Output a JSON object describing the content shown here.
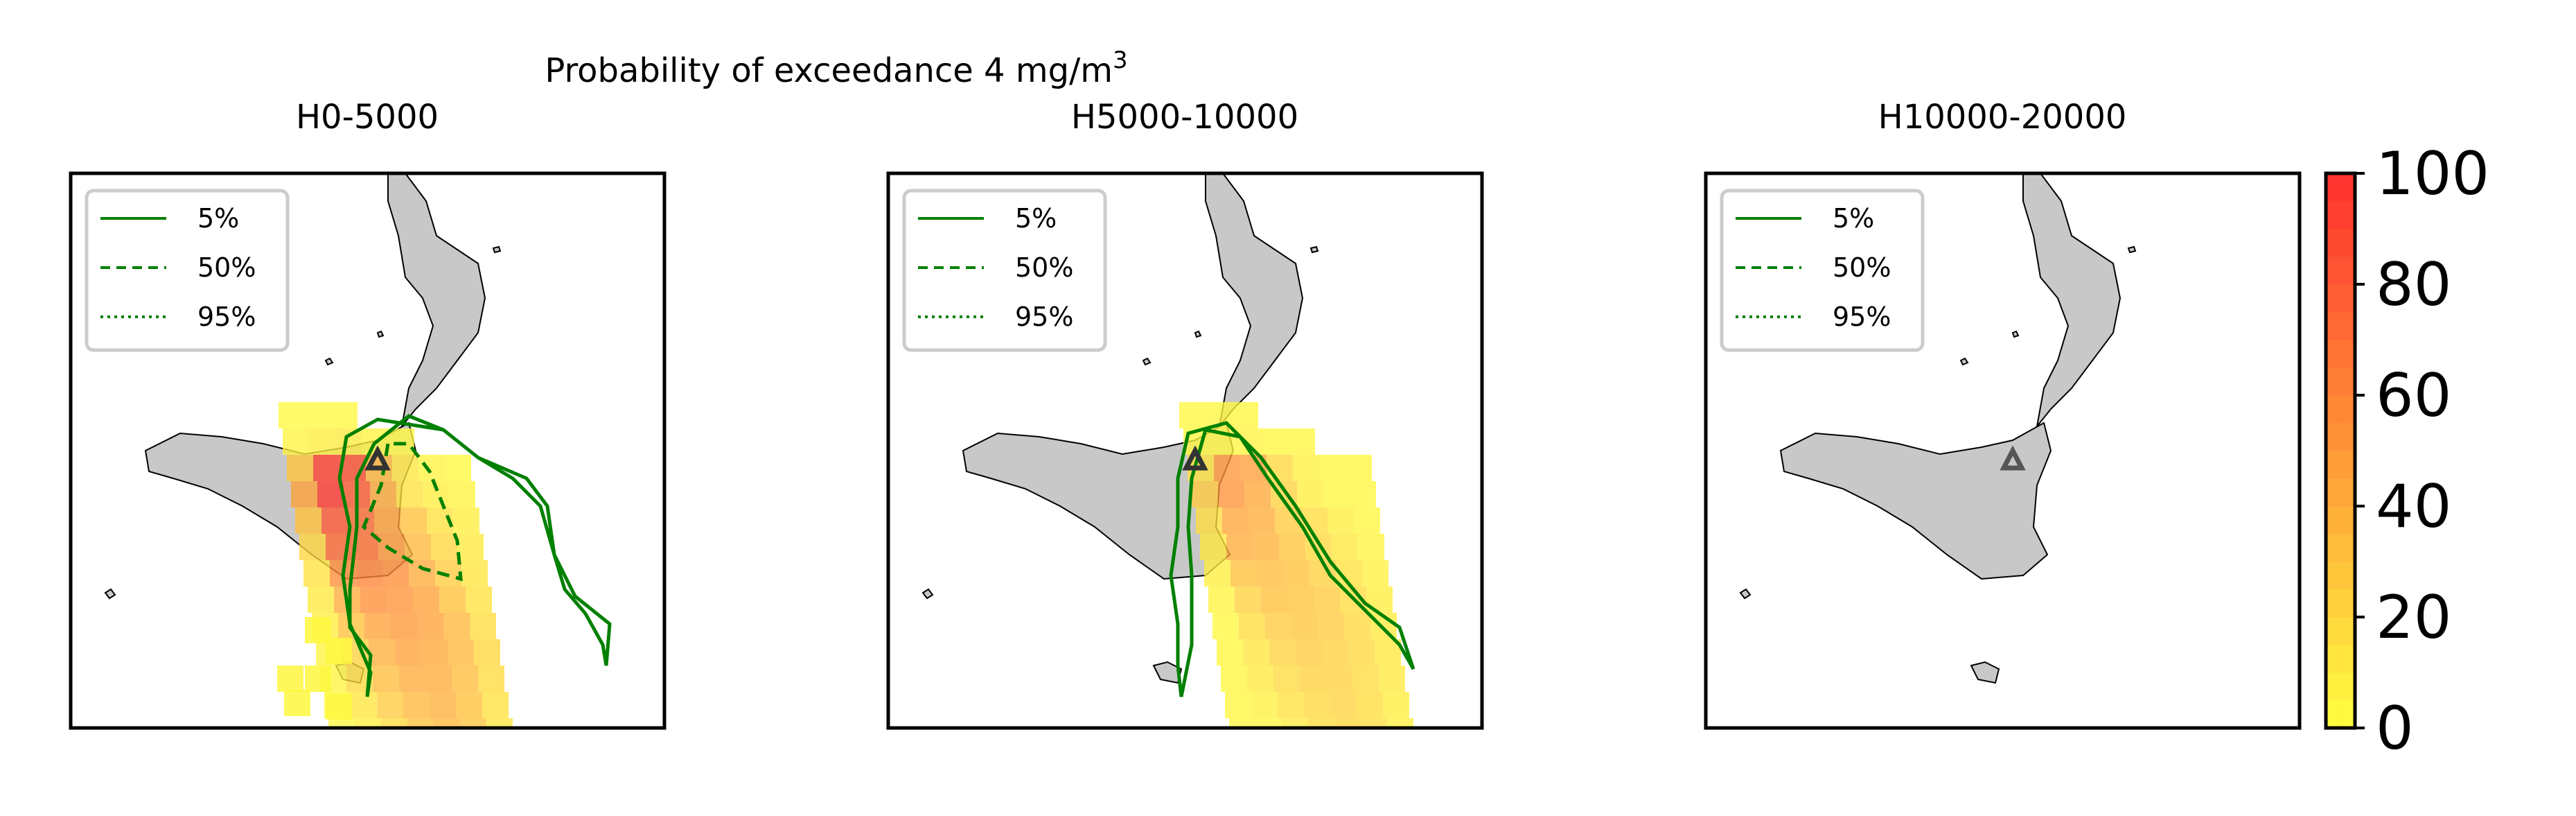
{
  "figure": {
    "suptitle": "Probability of exceedance 4 mg/m",
    "suptitle_superscript": "3"
  },
  "chart_data": [
    {
      "type": "heatmap",
      "title": "H0-5000",
      "legend": {
        "placement": "top-left",
        "entries": [
          {
            "label": "5%",
            "style": "solid",
            "color": "#008000"
          },
          {
            "label": "50%",
            "style": "dashed",
            "color": "#008000"
          },
          {
            "label": "95%",
            "style": "dotted",
            "color": "#008000"
          }
        ]
      },
      "vent_marker": "triangle",
      "probability_field": [
        [
          0,
          0,
          0,
          0,
          0,
          0,
          0,
          0,
          0,
          0,
          0,
          0,
          0,
          0,
          0
        ],
        [
          0,
          0,
          0,
          0,
          0,
          0,
          0,
          0,
          0,
          0,
          0,
          0,
          0,
          0,
          0
        ],
        [
          0,
          0,
          0,
          0,
          0,
          0,
          0,
          0,
          0,
          0,
          0,
          0,
          0,
          0,
          0
        ],
        [
          0,
          0,
          0,
          0,
          0,
          0,
          0,
          0,
          0,
          0,
          0,
          0,
          0,
          0,
          0
        ],
        [
          0,
          0,
          0,
          0,
          0,
          0,
          0,
          0,
          0,
          0,
          0,
          0,
          0,
          0,
          0
        ],
        [
          0,
          0,
          0,
          0,
          0,
          0,
          0,
          0,
          0,
          0,
          0,
          0,
          0,
          0,
          0
        ],
        [
          0,
          0,
          0,
          0,
          0,
          0,
          0,
          0,
          0,
          0,
          0,
          0,
          0,
          0,
          0
        ],
        [
          0,
          0,
          0,
          0,
          0,
          0,
          0,
          0,
          0,
          0,
          0,
          0,
          0,
          0,
          0
        ],
        [
          0,
          0,
          0,
          0,
          0,
          0,
          0,
          0,
          3,
          3,
          3,
          0,
          0,
          0,
          0
        ],
        [
          0,
          0,
          0,
          0,
          0,
          0,
          0,
          0,
          5,
          8,
          10,
          5,
          3,
          0,
          0
        ],
        [
          0,
          0,
          0,
          0,
          0,
          0,
          0,
          0,
          28,
          92,
          85,
          35,
          12,
          5,
          3
        ],
        [
          0,
          0,
          0,
          0,
          0,
          0,
          0,
          0,
          45,
          95,
          78,
          40,
          15,
          8,
          5
        ],
        [
          0,
          0,
          0,
          0,
          0,
          0,
          0,
          0,
          30,
          80,
          70,
          45,
          30,
          15,
          8
        ],
        [
          0,
          0,
          0,
          0,
          0,
          0,
          0,
          0,
          20,
          72,
          68,
          50,
          35,
          20,
          10
        ],
        [
          0,
          0,
          0,
          0,
          0,
          0,
          0,
          0,
          15,
          55,
          60,
          55,
          40,
          25,
          12
        ],
        [
          0,
          0,
          0,
          0,
          0,
          0,
          0,
          0,
          10,
          40,
          55,
          52,
          45,
          30,
          15
        ],
        [
          0,
          0,
          0,
          0,
          0,
          0,
          0,
          0,
          8,
          30,
          45,
          50,
          45,
          35,
          18
        ],
        [
          0,
          0,
          0,
          0,
          0,
          0,
          0,
          0,
          5,
          22,
          38,
          45,
          42,
          35,
          20
        ],
        [
          0,
          0,
          0,
          0,
          0,
          0,
          0,
          0,
          5,
          18,
          32,
          40,
          40,
          32,
          18
        ],
        [
          0,
          0,
          0,
          0,
          0,
          0,
          0,
          0,
          3,
          12,
          25,
          35,
          38,
          30,
          15
        ],
        [
          0,
          0,
          0,
          0,
          0,
          0,
          0,
          0,
          3,
          8,
          18,
          30,
          35,
          28,
          12
        ],
        [
          0,
          0,
          0,
          0,
          0,
          0,
          0,
          0,
          2,
          5,
          12,
          25,
          32,
          25,
          10
        ]
      ],
      "colorbar_ticks": [
        "0",
        "20",
        "40",
        "60",
        "80",
        "100"
      ]
    },
    {
      "type": "heatmap",
      "title": "H5000-10000",
      "legend": {
        "placement": "top-left",
        "entries": [
          {
            "label": "5%",
            "style": "solid",
            "color": "#008000"
          },
          {
            "label": "50%",
            "style": "dashed",
            "color": "#008000"
          },
          {
            "label": "95%",
            "style": "dotted",
            "color": "#008000"
          }
        ]
      },
      "vent_marker": "triangle"
    },
    {
      "type": "heatmap",
      "title": "H10000-20000",
      "legend": {
        "placement": "top-left",
        "entries": [
          {
            "label": "5%",
            "style": "solid",
            "color": "#008000"
          },
          {
            "label": "50%",
            "style": "dashed",
            "color": "#008000"
          },
          {
            "label": "95%",
            "style": "dotted",
            "color": "#008000"
          }
        ]
      },
      "vent_marker": "triangle"
    }
  ],
  "colorbar": {
    "min": 0,
    "max": 100,
    "levels": 20,
    "colors": [
      "#ffff40",
      "#ff3030"
    ],
    "ticks": [
      "100",
      "80",
      "60",
      "40",
      "20",
      "0"
    ]
  }
}
